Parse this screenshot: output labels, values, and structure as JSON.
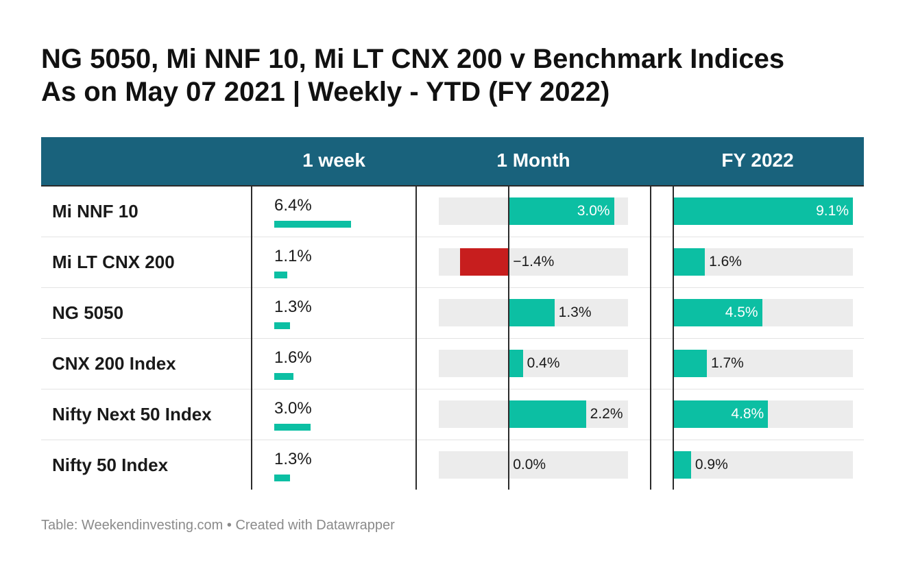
{
  "title_line1": "NG 5050, Mi NNF 10, Mi LT CNX 200 v Benchmark Indices",
  "title_line2": "As on May 07 2021  |  Weekly - YTD (FY 2022)",
  "footer": "Table: Weekendinvesting.com • Created with Datawrapper",
  "colors": {
    "header_bg": "#19627c",
    "positive": "#0cbfa3",
    "negative": "#c71e1e",
    "bar_bg": "#ececec"
  },
  "chart_data": {
    "type": "table",
    "columns": [
      "",
      "1 week",
      "1 Month",
      "FY 2022"
    ],
    "scales": {
      "week_max": 6.4,
      "month_range": [
        -2.0,
        3.4
      ],
      "fy_range": [
        0.0,
        9.1
      ]
    },
    "rows": [
      {
        "name": "Mi NNF 10",
        "week": 6.4,
        "week_label": "6.4%",
        "month": 3.0,
        "month_label": "3.0%",
        "fy": 9.1,
        "fy_label": "9.1%"
      },
      {
        "name": "Mi LT CNX 200",
        "week": 1.1,
        "week_label": "1.1%",
        "month": -1.4,
        "month_label": "−1.4%",
        "fy": 1.6,
        "fy_label": "1.6%"
      },
      {
        "name": "NG 5050",
        "week": 1.3,
        "week_label": "1.3%",
        "month": 1.3,
        "month_label": "1.3%",
        "fy": 4.5,
        "fy_label": "4.5%"
      },
      {
        "name": "CNX 200 Index",
        "week": 1.6,
        "week_label": "1.6%",
        "month": 0.4,
        "month_label": "0.4%",
        "fy": 1.7,
        "fy_label": "1.7%"
      },
      {
        "name": "Nifty Next 50 Index",
        "week": 3.0,
        "week_label": "3.0%",
        "month": 2.2,
        "month_label": "2.2%",
        "fy": 4.8,
        "fy_label": "4.8%"
      },
      {
        "name": "Nifty 50 Index",
        "week": 1.3,
        "week_label": "1.3%",
        "month": 0.0,
        "month_label": "0.0%",
        "fy": 0.9,
        "fy_label": "0.9%"
      }
    ]
  }
}
